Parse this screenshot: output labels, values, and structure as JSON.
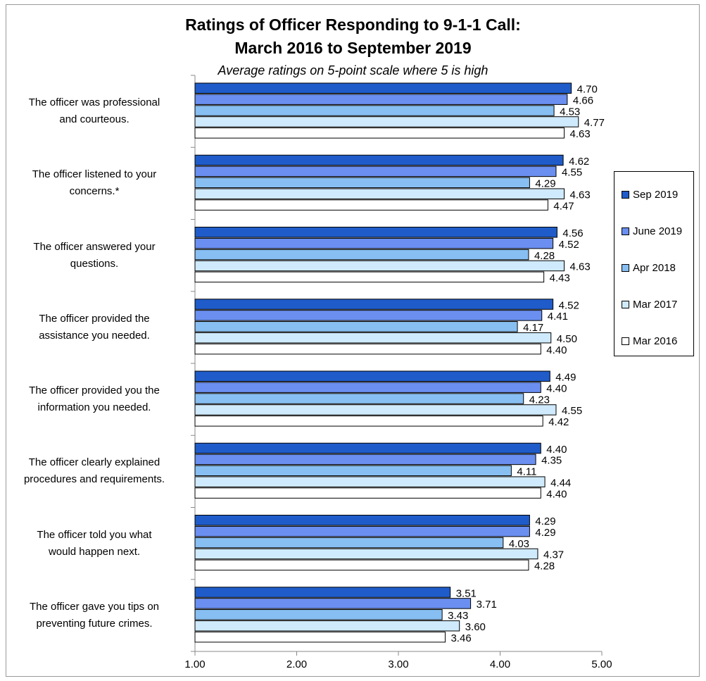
{
  "chart_data": {
    "type": "bar",
    "orientation": "horizontal",
    "title_line1": "Ratings of Officer Responding to 9-1-1 Call:",
    "title_line2": "March 2016 to September 2019",
    "subtitle": "Average ratings on 5-point scale where 5 is high",
    "xlim": [
      1,
      5
    ],
    "x_ticks": [
      "1.00",
      "2.00",
      "3.00",
      "4.00",
      "5.00"
    ],
    "legend_position": "right",
    "categories": [
      "The officer was professional\nand courteous.",
      "The officer listened to your\nconcerns.*",
      "The officer answered your\nquestions.",
      "The officer provided the\nassistance you needed.",
      "The officer provided you the\ninformation you needed.",
      "The officer clearly explained\nprocedures and requirements.",
      "The officer told you what\nwould happen next.",
      "The officer gave you tips on\npreventing future crimes."
    ],
    "series": [
      {
        "name": "Sep 2019",
        "color": "#1f5cc9",
        "values": [
          4.7,
          4.62,
          4.56,
          4.52,
          4.49,
          4.4,
          4.29,
          3.51
        ],
        "labels": [
          "4.70",
          "4.62",
          "4.56",
          "4.52",
          "4.49",
          "4.40",
          "4.29",
          "3.51"
        ]
      },
      {
        "name": "June 2019",
        "color": "#6a8ff0",
        "values": [
          4.66,
          4.55,
          4.52,
          4.41,
          4.4,
          4.35,
          4.29,
          3.71
        ],
        "labels": [
          "4.66",
          "4.55",
          "4.52",
          "4.41",
          "4.40",
          "4.35",
          "4.29",
          "3.71"
        ]
      },
      {
        "name": "Apr 2018",
        "color": "#88bff2",
        "values": [
          4.53,
          4.29,
          4.28,
          4.17,
          4.23,
          4.11,
          4.03,
          3.43
        ],
        "labels": [
          "4.53",
          "4.29",
          "4.28",
          "4.17",
          "4.23",
          "4.11",
          "4.03",
          "3.43"
        ]
      },
      {
        "name": "Mar 2017",
        "color": "#cfeafd",
        "values": [
          4.77,
          4.63,
          4.63,
          4.5,
          4.55,
          4.44,
          4.37,
          3.6
        ],
        "labels": [
          "4.77",
          "4.63",
          "4.63",
          "4.50",
          "4.55",
          "4.44",
          "4.37",
          "3.60"
        ]
      },
      {
        "name": "Mar 2016",
        "color": "#ffffff",
        "values": [
          4.63,
          4.47,
          4.43,
          4.4,
          4.42,
          4.4,
          4.28,
          3.46
        ],
        "labels": [
          "4.63",
          "4.47",
          "4.43",
          "4.40",
          "4.42",
          "4.40",
          "4.28",
          "3.46"
        ]
      }
    ]
  }
}
